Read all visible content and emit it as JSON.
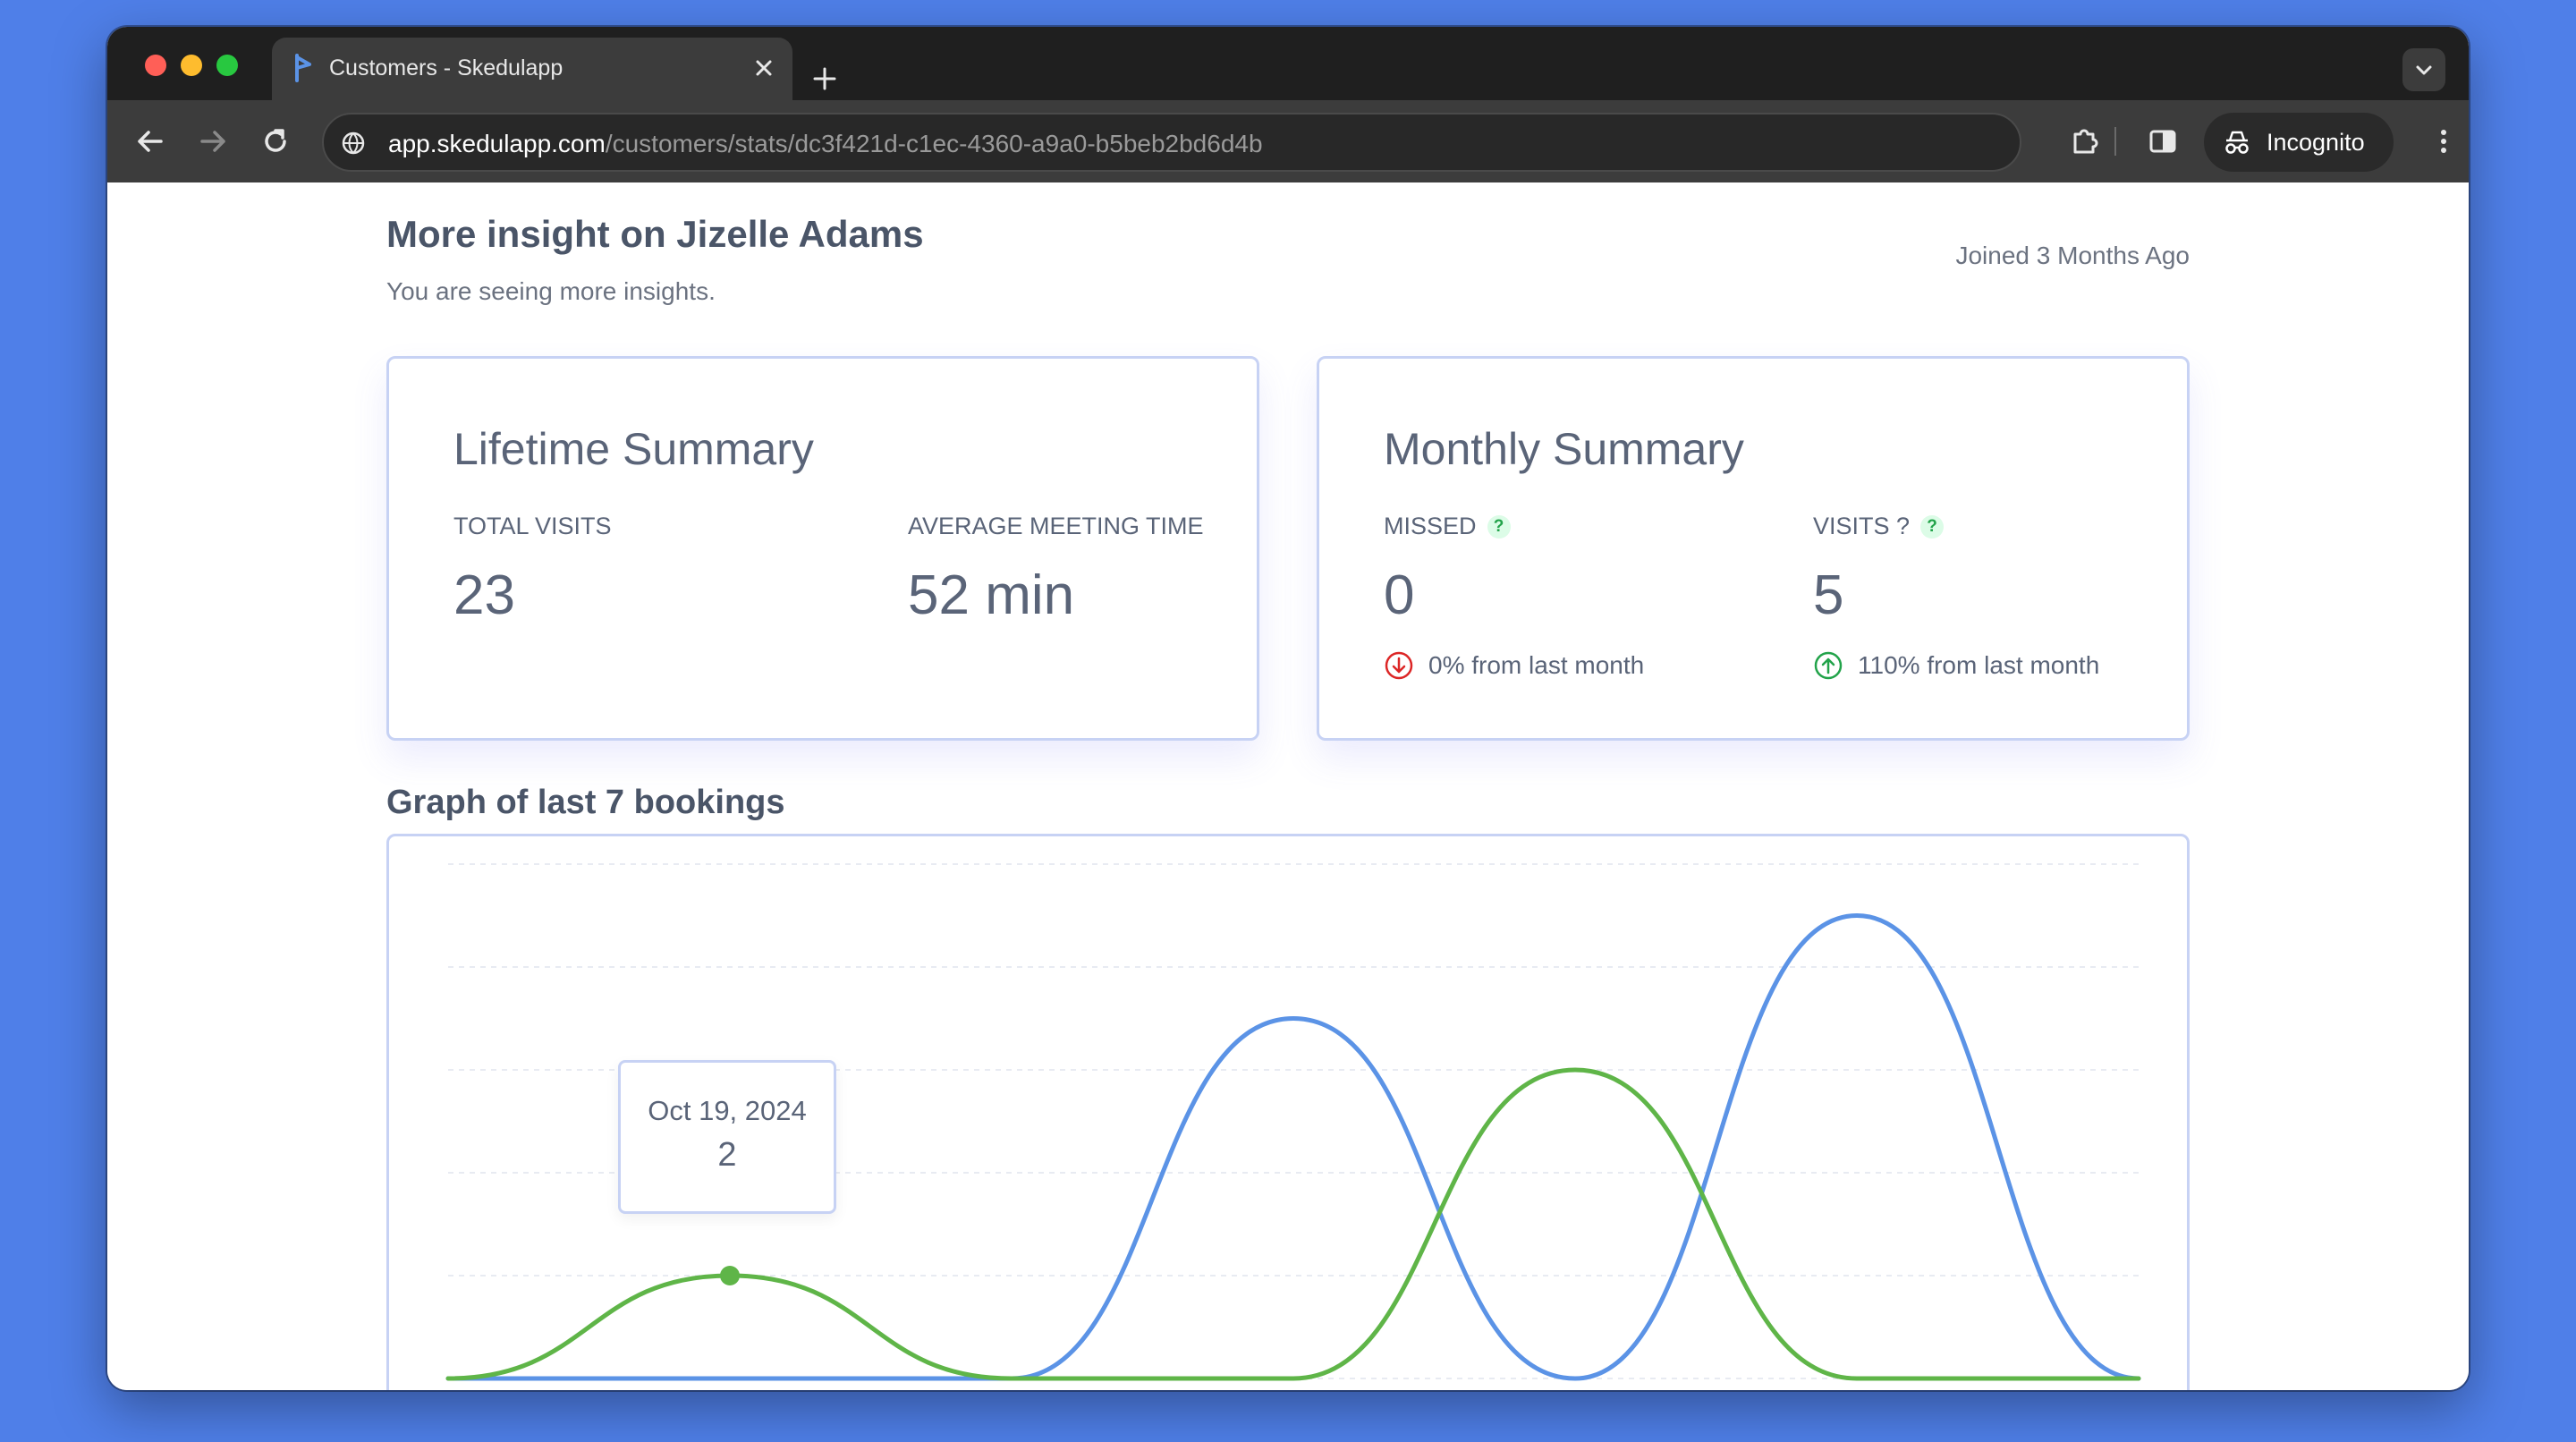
{
  "browser": {
    "tab_title": "Customers - Skedulapp",
    "url_host": "app.skedulapp.com",
    "url_path": "/customers/stats/dc3f421d-c1ec-4360-a9a0-b5beb2bd6d4b",
    "incognito_label": "Incognito"
  },
  "header": {
    "title": "More insight on Jizelle Adams",
    "subtitle": "You are seeing more insights.",
    "joined": "Joined 3 Months Ago"
  },
  "lifetime": {
    "title": "Lifetime Summary",
    "total_visits_label": "TOTAL VISITS",
    "total_visits_value": "23",
    "avg_meeting_label": "AVERAGE MEETING TIME",
    "avg_meeting_value": "52 min"
  },
  "monthly": {
    "title": "Monthly Summary",
    "missed_label": "MISSED",
    "missed_value": "0",
    "missed_trend": "0% from last month",
    "visits_label": "VISITS ?",
    "visits_value": "5",
    "visits_trend": "110% from last month",
    "help_glyph": "?"
  },
  "graph": {
    "title": "Graph of last 7 bookings",
    "tooltip_date": "Oct 19, 2024",
    "tooltip_value": "2"
  },
  "colors": {
    "blue_series": "#5b93e6",
    "green_series": "#5fb548",
    "down_trend": "#dc2626",
    "up_trend": "#22a34a"
  },
  "chart_data": {
    "type": "line",
    "series": [
      {
        "values": [
          0,
          0,
          0,
          7,
          0,
          9,
          0
        ]
      },
      {
        "values": [
          0,
          2,
          0,
          0,
          6,
          0,
          0
        ]
      }
    ],
    "ylim": [
      0,
      10
    ],
    "grid": true
  }
}
